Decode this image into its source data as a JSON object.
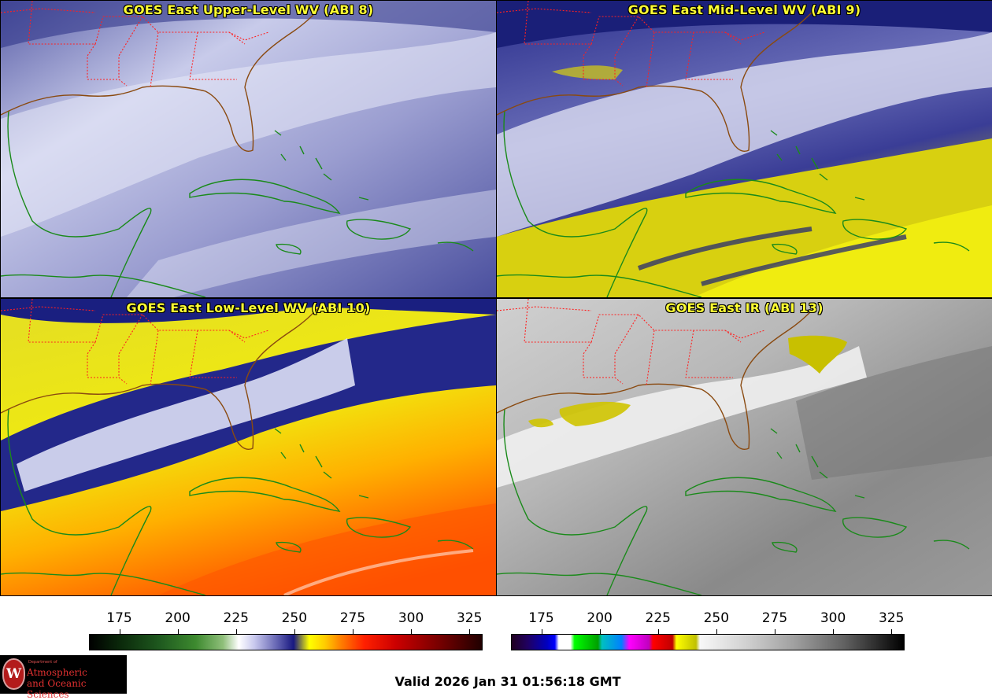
{
  "panels": [
    {
      "title": "GOES East Upper-Level WV (ABI 8)",
      "band": "ABI 8"
    },
    {
      "title": "GOES East Mid-Level WV (ABI 9)",
      "band": "ABI 9"
    },
    {
      "title": "GOES East Low-Level WV (ABI 10)",
      "band": "ABI 10"
    },
    {
      "title": "GOES East IR (ABI 13)",
      "band": "ABI 13"
    }
  ],
  "colorbars": {
    "wv": {
      "ticks": [
        "175",
        "200",
        "225",
        "250",
        "275",
        "300",
        "325"
      ],
      "range": [
        162,
        330
      ]
    },
    "ir": {
      "ticks": [
        "175",
        "200",
        "225",
        "250",
        "275",
        "300",
        "325"
      ],
      "range": [
        162,
        330
      ]
    }
  },
  "footer": {
    "valid_time": "Valid 2026 Jan 31 01:56:18 GMT",
    "logo": {
      "dept": "Department of",
      "line1": "Atmospheric",
      "line2": "and Oceanic Sciences",
      "seal": "W"
    }
  },
  "colors": {
    "title_text": "#ffff33",
    "coastline": "#1a8a1a",
    "us_coast": "#8a4a10",
    "state_borders": "#ff2020"
  }
}
